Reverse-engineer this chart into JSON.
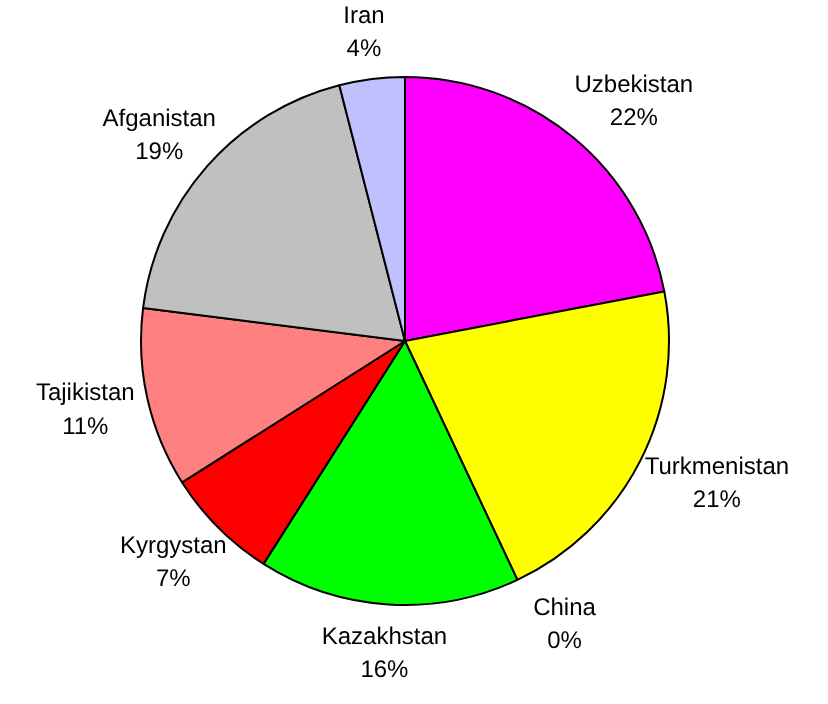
{
  "chart_data": {
    "type": "pie",
    "categories": [
      "Uzbekistan",
      "Turkmenistan",
      "China",
      "Kazakhstan",
      "Kyrgystan",
      "Tajikistan",
      "Afganistan",
      "Iran"
    ],
    "values": [
      22,
      21,
      0,
      16,
      7,
      11,
      19,
      4
    ],
    "value_labels": [
      "22%",
      "21%",
      "0%",
      "16%",
      "7%",
      "11%",
      "19%",
      "4%"
    ],
    "colors": [
      "#ff00ff",
      "#ffff00",
      "#00ffff",
      "#00ff00",
      "#ff0000",
      "#ff8080",
      "#c0c0c0",
      "#c0c0ff"
    ]
  }
}
